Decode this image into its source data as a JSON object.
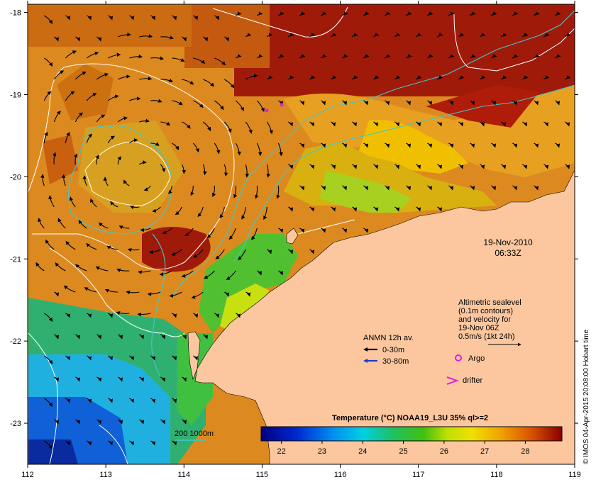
{
  "map": {
    "x_ticks": [
      "112",
      "113",
      "114",
      "115",
      "116",
      "117",
      "118",
      "119"
    ],
    "y_ticks": [
      "-18",
      "-19",
      "-20",
      "-21",
      "-22",
      "-23"
    ],
    "lon_range": [
      112,
      119
    ],
    "lat_range": [
      -23.5,
      -17.9
    ]
  },
  "timestamp": {
    "date": "19-Nov-2010",
    "time": "06:33Z"
  },
  "altimetry_note": {
    "line1": "Altimetric sealevel",
    "line2": "(0.1m contours)",
    "line3": "and velocity for",
    "line4": "19-Nov 06Z",
    "line5": "0.5m/s (1kt 24h)"
  },
  "anmn_legend": {
    "title": "ANMN 12h av.",
    "item1": "0-30m",
    "item2": "30-80m",
    "color1": "#000000",
    "color2": "#1a3cc8"
  },
  "argo_label": "Argo",
  "drifter_label": "drifter",
  "bathy_label": "200  1000m",
  "colorbar": {
    "title": "Temperature (°C) NOAA19_L3U 35% ql>=2",
    "ticks": [
      "22",
      "23",
      "24",
      "25",
      "26",
      "27",
      "28"
    ],
    "range": [
      21.5,
      28.9
    ]
  },
  "credit": "© IMOS 04-Apr-2015 20:08:00 Hobart time",
  "colors": {
    "land": "#fcc79f",
    "argo": "#e020e0",
    "contour": "#ffffff",
    "bathymetry": "#40c8c8"
  }
}
